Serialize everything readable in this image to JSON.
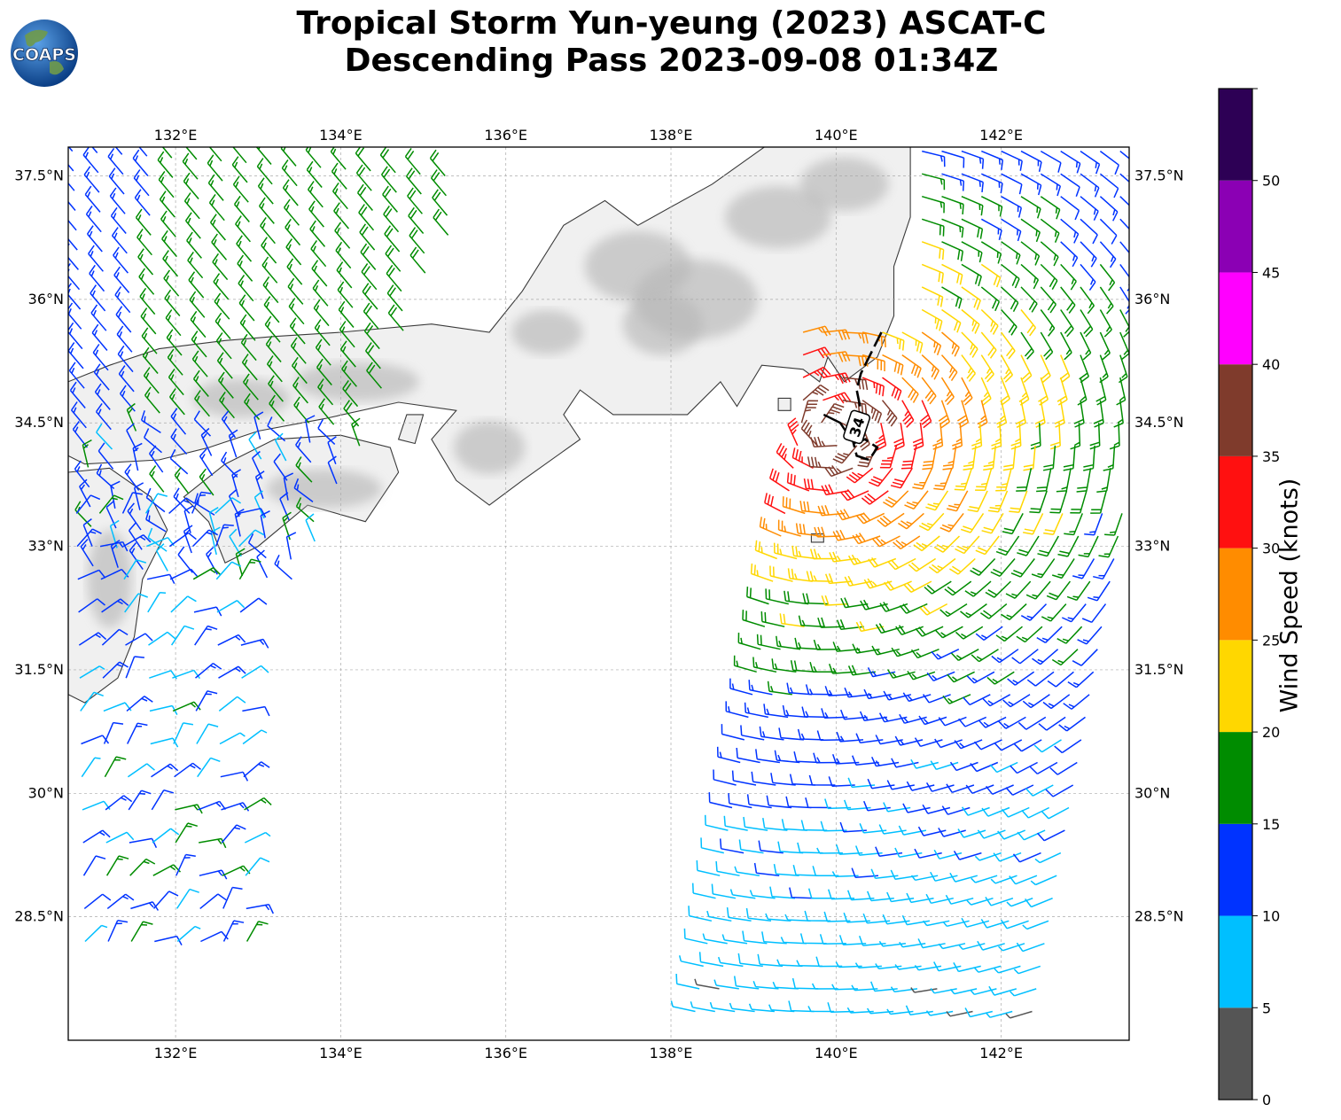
{
  "title": {
    "line1": "Tropical Storm Yun-yeung (2023) ASCAT-C",
    "line2": "Descending Pass 2023-09-08 01:34Z"
  },
  "logo": {
    "text": "COAPS",
    "icon": "globe-icon"
  },
  "map": {
    "projection": "PlateCarree",
    "lon_range": [
      130.7,
      143.55
    ],
    "lat_range": [
      27.0,
      37.85
    ],
    "lon_ticks": [
      132,
      134,
      136,
      138,
      140,
      142
    ],
    "lon_tick_labels": [
      "132°E",
      "134°E",
      "136°E",
      "138°E",
      "140°E",
      "142°E"
    ],
    "lat_ticks": [
      37.5,
      36,
      34.5,
      33,
      31.5,
      30,
      28.5
    ],
    "lat_tick_labels": [
      "37.5°N",
      "36°N",
      "34.5°N",
      "33°N",
      "31.5°N",
      "30°N",
      "28.5°N"
    ],
    "gridlines": true,
    "land_shading": "grayscale terrain",
    "wind_radius_contour_label": "34",
    "storm_center_approx": [
      140.0,
      34.4
    ]
  },
  "colorbar": {
    "label": "Wind Speed (knots)",
    "ticks": [
      0,
      5,
      10,
      15,
      20,
      25,
      30,
      35,
      40,
      45,
      50
    ],
    "tick_labels": [
      "0",
      "5",
      "10",
      "15",
      "20",
      "25",
      "30",
      "35",
      "40",
      "45",
      "50"
    ],
    "bins": [
      {
        "from": 0,
        "to": 5,
        "color": "#555555"
      },
      {
        "from": 5,
        "to": 10,
        "color": "#00bfff"
      },
      {
        "from": 10,
        "to": 15,
        "color": "#0033ff"
      },
      {
        "from": 15,
        "to": 20,
        "color": "#008c00"
      },
      {
        "from": 20,
        "to": 25,
        "color": "#ffd700"
      },
      {
        "from": 25,
        "to": 30,
        "color": "#ff8c00"
      },
      {
        "from": 30,
        "to": 35,
        "color": "#ff1010"
      },
      {
        "from": 35,
        "to": 40,
        "color": "#7f3b2c"
      },
      {
        "from": 40,
        "to": 45,
        "color": "#ff00ff"
      },
      {
        "from": 45,
        "to": 50,
        "color": "#8b00b4"
      },
      {
        "from": 50,
        "to": 55,
        "color": "#2d0055"
      }
    ]
  }
}
